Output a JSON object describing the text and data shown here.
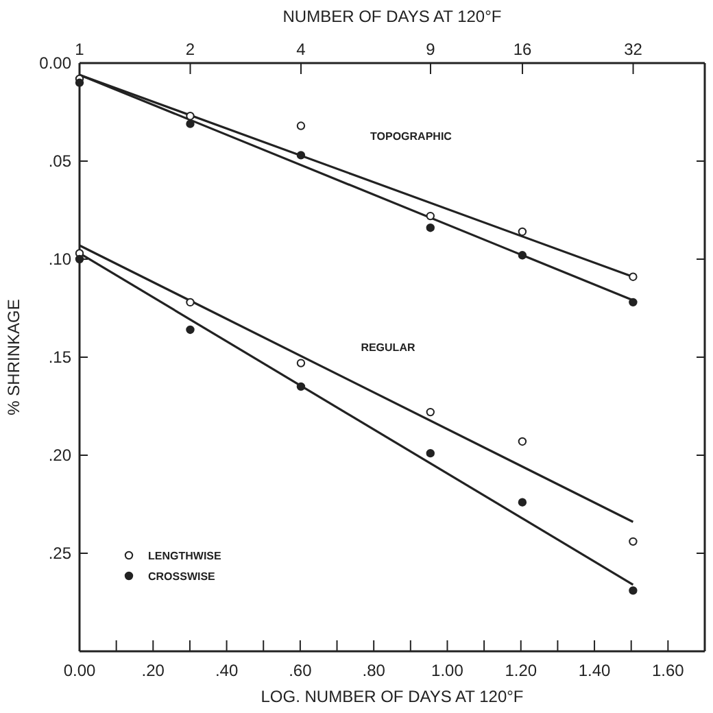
{
  "chart_data": {
    "type": "scatter",
    "xlabel": "LOG. NUMBER OF DAYS AT 120°F",
    "ylabel": "% SHRINKAGE",
    "x2label": "NUMBER OF DAYS AT 120°F",
    "xlim": [
      0,
      1.7
    ],
    "ylim": [
      0.3,
      0
    ],
    "x2lim": [
      1,
      50.1
    ],
    "xticks": [
      {
        "value": 0,
        "label": "0.00"
      },
      {
        "value": 0.1,
        "label": null
      },
      {
        "value": 0.2,
        "label": ".20"
      },
      {
        "value": 0.3,
        "label": null
      },
      {
        "value": 0.4,
        "label": ".40"
      },
      {
        "value": 0.5,
        "label": null
      },
      {
        "value": 0.6,
        "label": ".60"
      },
      {
        "value": 0.7,
        "label": null
      },
      {
        "value": 0.8,
        "label": ".80"
      },
      {
        "value": 0.9,
        "label": null
      },
      {
        "value": 1,
        "label": "1.00"
      },
      {
        "value": 1.1,
        "label": null
      },
      {
        "value": 1.2,
        "label": "1.20"
      },
      {
        "value": 1.3,
        "label": null
      },
      {
        "value": 1.4,
        "label": "1.40"
      },
      {
        "value": 1.5,
        "label": null
      },
      {
        "value": 1.6,
        "label": "1.60"
      }
    ],
    "x2ticks": [
      1,
      2,
      4,
      9,
      16,
      32
    ],
    "log": "x2",
    "yticks": [
      {
        "value": 0,
        "label": "0.00"
      },
      {
        "value": 0.05,
        "label": ".05"
      },
      {
        "value": 0.1,
        "label": ".10"
      },
      {
        "value": 0.15,
        "label": ".15"
      },
      {
        "value": 0.2,
        "label": ".20"
      },
      {
        "value": 0.25,
        "label": ".25"
      }
    ],
    "grid": false,
    "legend": "bottom left",
    "annotations": [
      "TOPOGRAPHIC",
      "REGULAR"
    ],
    "series": [
      {
        "name": "LENGTHWISE",
        "color": "#ffffff",
        "marker": "circle",
        "x": [
          0,
          0.301,
          0.602,
          0.954,
          1.204,
          1.505,
          0,
          0.301,
          0.602,
          0.954,
          1.204,
          1.505
        ],
        "values": [
          0.008,
          0.027,
          0.032,
          0.078,
          0.086,
          0.109,
          0.097,
          0.122,
          0.153,
          0.178,
          0.193,
          0.244
        ]
      },
      {
        "name": "CROSSWISE",
        "color": "#222222",
        "marker": "circle",
        "x": [
          0,
          0.301,
          0.602,
          0.954,
          1.204,
          1.505,
          0,
          0.301,
          0.602,
          0.954,
          1.204,
          1.505
        ],
        "values": [
          0.01,
          0.031,
          0.047,
          0.084,
          0.098,
          0.122,
          0.1,
          0.136,
          0.165,
          0.199,
          0.224,
          0.269
        ]
      },
      {
        "type": "line",
        "color": "#222222",
        "x": [
          0,
          1.505
        ],
        "values": [
          0.006,
          0.109
        ]
      },
      {
        "type": "line",
        "color": "#222222",
        "x": [
          0,
          1.505
        ],
        "values": [
          0.006,
          0.121
        ]
      },
      {
        "type": "line",
        "color": "#222222",
        "x": [
          0,
          1.505
        ],
        "values": [
          0.093,
          0.234
        ]
      },
      {
        "type": "line",
        "color": "#222222",
        "x": [
          0,
          1.505
        ],
        "values": [
          0.097,
          0.266
        ]
      }
    ]
  }
}
